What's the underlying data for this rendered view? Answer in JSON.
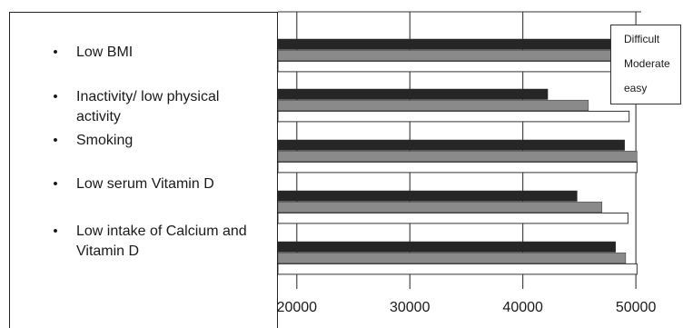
{
  "chart_data": {
    "type": "bar",
    "orientation": "horizontal",
    "categories": [
      "Low BMI",
      "Inactivity/ low physical activity",
      "Smoking",
      "Low serum Vitamin D",
      "Low intake of Calcium and Vitamin D"
    ],
    "series": [
      {
        "name": "Difficult",
        "color": "#262626",
        "values": [
          48200,
          42200,
          49000,
          44800,
          48200
        ]
      },
      {
        "name": "Moderate",
        "color": "#8a8a8a",
        "values": [
          48800,
          45800,
          50100,
          47000,
          49100
        ]
      },
      {
        "name": "easy",
        "color": "#ffffff",
        "values": [
          49900,
          49400,
          50100,
          49300,
          50100
        ]
      }
    ],
    "xlim": [
      17500,
      52000
    ],
    "ticks": [
      "20000",
      "30000",
      "40000",
      "50000"
    ],
    "tick_values": [
      20000,
      30000,
      40000,
      50000
    ],
    "grid": "vertical",
    "legend_position": "top-right",
    "title": "",
    "xlabel": "",
    "ylabel": ""
  },
  "labels": [
    {
      "bullet": "•",
      "text": "Low BMI"
    },
    {
      "bullet": "•",
      "text": "Inactivity/ low physical activity"
    },
    {
      "bullet": "•",
      "text": "Smoking"
    },
    {
      "bullet": "•",
      "text": "Low serum Vitamin D"
    },
    {
      "bullet": "•",
      "text": "Low intake of Calcium and Vitamin D"
    }
  ]
}
